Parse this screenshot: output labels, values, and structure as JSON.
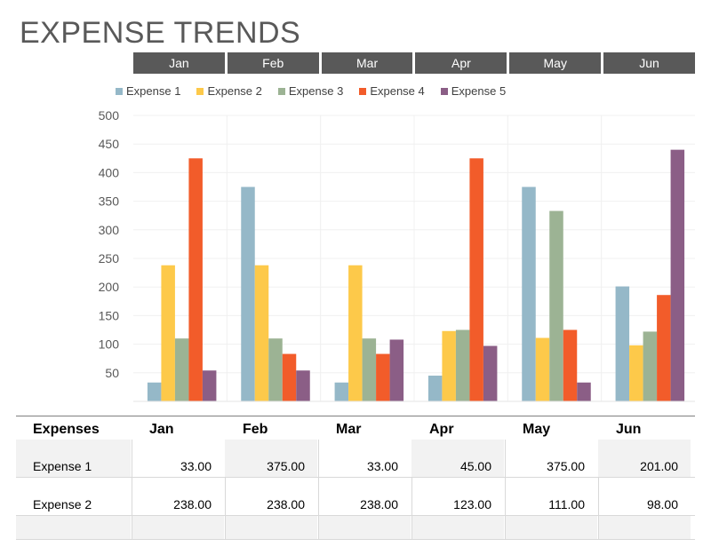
{
  "page": {
    "title": "EXPENSE TRENDS"
  },
  "months": [
    "Jan",
    "Feb",
    "Mar",
    "Apr",
    "May",
    "Jun"
  ],
  "chart_data": {
    "type": "bar",
    "categories": [
      "Jan",
      "Feb",
      "Mar",
      "Apr",
      "May",
      "Jun"
    ],
    "series": [
      {
        "name": "Expense 1",
        "color": "#95b8c8",
        "values": [
          33,
          375,
          33,
          45,
          375,
          201
        ]
      },
      {
        "name": "Expense 2",
        "color": "#fdc94a",
        "values": [
          238,
          238,
          238,
          123,
          111,
          98
        ]
      },
      {
        "name": "Expense 3",
        "color": "#9cb394",
        "values": [
          110,
          110,
          110,
          125,
          333,
          122
        ]
      },
      {
        "name": "Expense 4",
        "color": "#f25c2a",
        "values": [
          425,
          83,
          83,
          425,
          125,
          186
        ]
      },
      {
        "name": "Expense 5",
        "color": "#8b5e86",
        "values": [
          54,
          54,
          108,
          97,
          33,
          440
        ]
      }
    ],
    "yticks": [
      50,
      100,
      150,
      200,
      250,
      300,
      350,
      400,
      450,
      500
    ],
    "ylim": [
      0,
      500
    ],
    "grid": true,
    "legend": "top"
  },
  "table": {
    "header": [
      "Expenses",
      "Jan",
      "Feb",
      "Mar",
      "Apr",
      "May",
      "Jun"
    ],
    "rows": [
      {
        "label": "Expense 1",
        "values": [
          "33.00",
          "375.00",
          "33.00",
          "45.00",
          "375.00",
          "201.00"
        ]
      },
      {
        "label": "Expense 2",
        "values": [
          "238.00",
          "238.00",
          "238.00",
          "123.00",
          "111.00",
          "98.00"
        ]
      }
    ]
  }
}
